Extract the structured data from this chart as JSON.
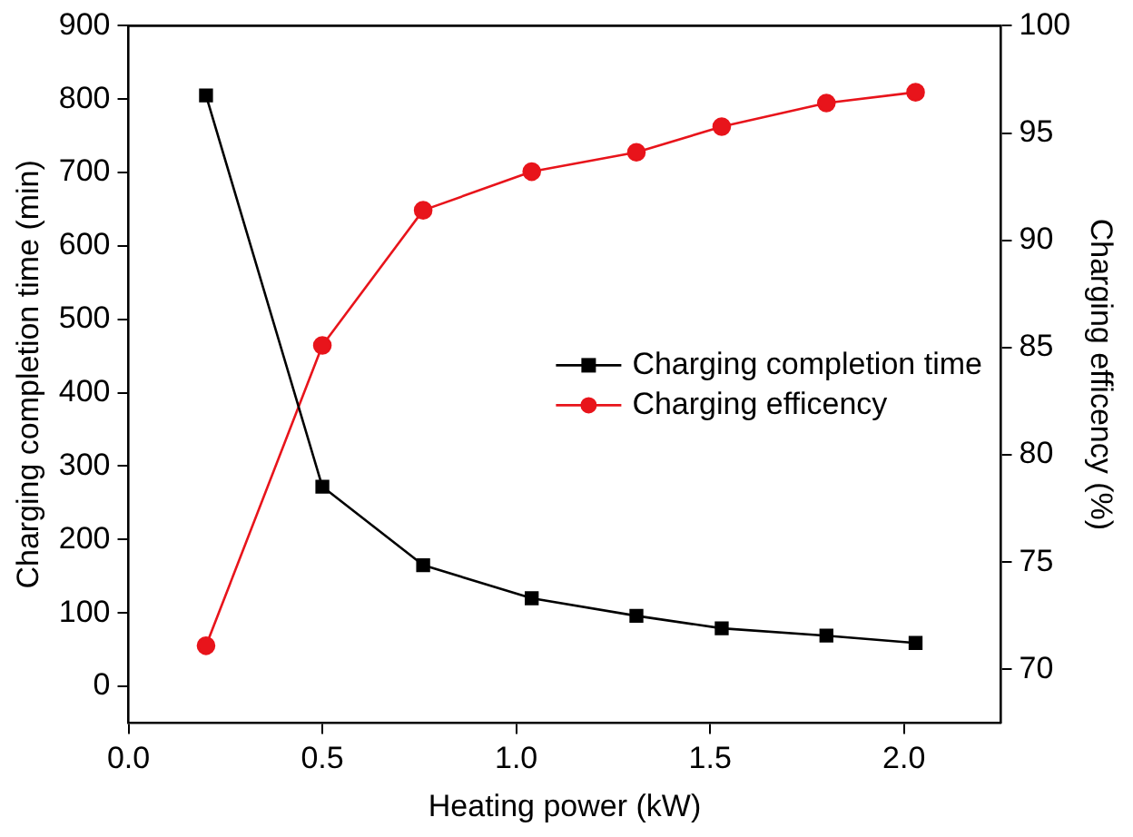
{
  "chart_data": {
    "type": "line",
    "xlabel": "Heating power (kW)",
    "ylabel": "Charging completion time (min)",
    "y2label": "Charging efficency (%)",
    "x": [
      0.2,
      0.5,
      0.76,
      1.04,
      1.31,
      1.53,
      1.8,
      2.03
    ],
    "series": [
      {
        "name": "Charging completion time",
        "color": "#000000",
        "marker": "square",
        "values": [
          805,
          272,
          165,
          120,
          96,
          79,
          69,
          59
        ]
      },
      {
        "name": "Charging efficency",
        "color": "#e8141b",
        "marker": "circle",
        "axis": "y2",
        "values": [
          71.1,
          85.1,
          91.4,
          93.2,
          94.1,
          95.3,
          96.4,
          96.9
        ]
      }
    ],
    "xlim": [
      0,
      2.25
    ],
    "xticks": [
      {
        "value": 0,
        "label": "0.0"
      },
      0.5,
      {
        "value": 1,
        "label": "1.0"
      },
      1.5,
      {
        "value": 2,
        "label": "2.0"
      }
    ],
    "ylim": [
      -50,
      900
    ],
    "yticks": [
      0,
      100,
      200,
      300,
      400,
      500,
      600,
      700,
      800,
      900
    ],
    "y2lim": [
      67.5,
      100
    ],
    "y2ticks": [
      70,
      75,
      80,
      85,
      90,
      95,
      100
    ],
    "legend": "right",
    "grid": false,
    "line_style": "solid"
  }
}
